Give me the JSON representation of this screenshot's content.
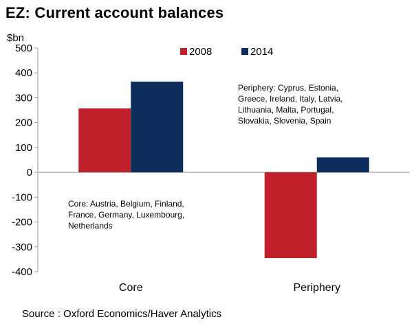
{
  "title": "EZ: Current account balances",
  "source": "Source : Oxford Economics/Haver Analytics",
  "annotations": {
    "periphery_note": [
      "Periphery: Cyprus, Estonia,",
      "Greece, Ireland, Italy, Latvia,",
      "Lithuania, Malta, Portugal,",
      "Slovakia, Slovenia, Spain"
    ],
    "core_note": [
      "Core: Austria, Belgium, Finland,",
      "France, Germany, Luxembourg,",
      "Netherlands"
    ]
  },
  "chart_data": {
    "type": "bar",
    "categories": [
      "Core",
      "Periphery"
    ],
    "series": [
      {
        "name": "2008",
        "values": [
          257,
          -345
        ],
        "color": "#c0202a"
      },
      {
        "name": "2014",
        "values": [
          365,
          60
        ],
        "color": "#0d2e5c"
      }
    ],
    "ylabel": "$bn",
    "ylim": [
      -400,
      500
    ],
    "yticks": [
      -400,
      -300,
      -200,
      -100,
      0,
      100,
      200,
      300,
      400,
      500
    ],
    "ytick_labels": [
      "-400",
      "-300",
      "-200",
      "-100",
      "0",
      "100",
      "200",
      "300",
      "400",
      "500"
    ],
    "grid": false,
    "legend": "top-center"
  }
}
